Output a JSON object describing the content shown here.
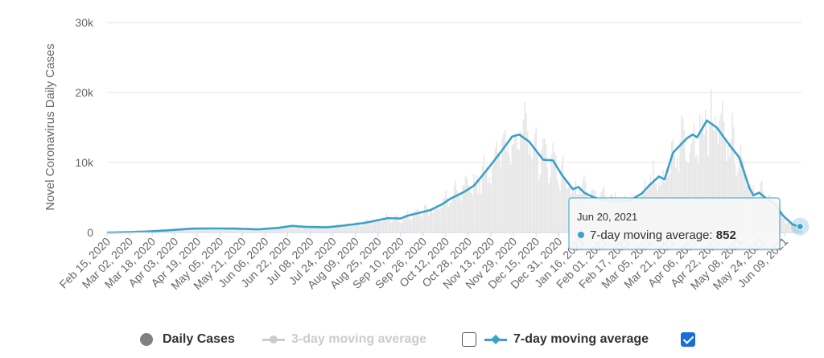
{
  "chart_data": {
    "type": "bar",
    "title": "",
    "ylabel": "Novel Coronavirus Daily Cases",
    "xlabel": "",
    "ylim": [
      0,
      30000
    ],
    "yticks": [
      {
        "value": 0,
        "label": "0"
      },
      {
        "value": 10000,
        "label": "10k"
      },
      {
        "value": 20000,
        "label": "20k"
      },
      {
        "value": 30000,
        "label": "30k"
      }
    ],
    "x_start": "2020-02-15",
    "x_end": "2021-06-21",
    "xtick_labels": [
      "Feb 15, 2020",
      "Mar 02, 2020",
      "Mar 18, 2020",
      "Apr 03, 2020",
      "Apr 19, 2020",
      "May 05, 2020",
      "May 21, 2020",
      "Jun 06, 2020",
      "Jun 22, 2020",
      "Jul 08, 2020",
      "Jul 24, 2020",
      "Aug 09, 2020",
      "Aug 25, 2020",
      "Sep 10, 2020",
      "Sep 26, 2020",
      "Oct 12, 2020",
      "Oct 28, 2020",
      "Nov 13, 2020",
      "Nov 29, 2020",
      "Dec 15, 2020",
      "Dec 31, 2020",
      "Jan 16, 2021",
      "Feb 01, 2021",
      "Feb 17, 2021",
      "Mar 05, 2021",
      "Mar 21, 2021",
      "Apr 06, 2021",
      "Apr 22, 2021",
      "May 08, 2021",
      "May 24, 2021",
      "Jun 09, 2021"
    ],
    "grid": true,
    "series": [
      {
        "name": "Daily Cases",
        "type": "bar",
        "color": "#e6e6e6",
        "visible": true,
        "description": "daily values approximated as the 7-day average with noise"
      },
      {
        "name": "3-day moving average",
        "type": "line",
        "color": "#cccccc",
        "visible": false
      },
      {
        "name": "7-day moving average",
        "type": "line",
        "color": "#3ba1c8",
        "visible": true,
        "points": [
          [
            "2020-02-15",
            0
          ],
          [
            "2020-03-01",
            50
          ],
          [
            "2020-03-15",
            150
          ],
          [
            "2020-04-01",
            350
          ],
          [
            "2020-04-15",
            550
          ],
          [
            "2020-05-01",
            580
          ],
          [
            "2020-05-15",
            560
          ],
          [
            "2020-06-01",
            450
          ],
          [
            "2020-06-15",
            650
          ],
          [
            "2020-06-25",
            950
          ],
          [
            "2020-07-05",
            800
          ],
          [
            "2020-07-20",
            750
          ],
          [
            "2020-08-01",
            1000
          ],
          [
            "2020-08-15",
            1350
          ],
          [
            "2020-09-01",
            2050
          ],
          [
            "2020-09-10",
            2000
          ],
          [
            "2020-09-15",
            2400
          ],
          [
            "2020-10-01",
            3200
          ],
          [
            "2020-10-10",
            4100
          ],
          [
            "2020-10-15",
            4800
          ],
          [
            "2020-10-25",
            5800
          ],
          [
            "2020-11-01",
            6700
          ],
          [
            "2020-11-10",
            8900
          ],
          [
            "2020-11-20",
            11500
          ],
          [
            "2020-11-28",
            13700
          ],
          [
            "2020-12-03",
            14000
          ],
          [
            "2020-12-10",
            13000
          ],
          [
            "2020-12-20",
            10400
          ],
          [
            "2020-12-27",
            10300
          ],
          [
            "2021-01-02",
            8300
          ],
          [
            "2021-01-10",
            6200
          ],
          [
            "2021-01-14",
            6500
          ],
          [
            "2021-01-18",
            5700
          ],
          [
            "2021-01-25",
            5000
          ],
          [
            "2021-02-01",
            4600
          ],
          [
            "2021-02-10",
            4400
          ],
          [
            "2021-02-20",
            4600
          ],
          [
            "2021-02-28",
            5600
          ],
          [
            "2021-03-05",
            6700
          ],
          [
            "2021-03-12",
            8000
          ],
          [
            "2021-03-16",
            7600
          ],
          [
            "2021-03-22",
            11400
          ],
          [
            "2021-04-01",
            13500
          ],
          [
            "2021-04-05",
            14000
          ],
          [
            "2021-04-08",
            13600
          ],
          [
            "2021-04-15",
            16000
          ],
          [
            "2021-04-22",
            15000
          ],
          [
            "2021-05-01",
            12500
          ],
          [
            "2021-05-08",
            10700
          ],
          [
            "2021-05-15",
            6400
          ],
          [
            "2021-05-18",
            5300
          ],
          [
            "2021-05-22",
            5700
          ],
          [
            "2021-05-28",
            4700
          ],
          [
            "2021-06-02",
            4100
          ],
          [
            "2021-06-08",
            2400
          ],
          [
            "2021-06-15",
            1100
          ],
          [
            "2021-06-20",
            852
          ]
        ]
      }
    ],
    "tooltip": {
      "date": "Jun 20, 2021",
      "series": "7-day moving average",
      "value": "852"
    }
  },
  "legend": {
    "items": [
      {
        "label": "Daily Cases",
        "enabled": true
      },
      {
        "label": "3-day moving average",
        "enabled": false,
        "checked": false
      },
      {
        "label": "7-day moving average",
        "enabled": true,
        "checked": true
      }
    ]
  },
  "colors": {
    "line": "#3ba1c8",
    "bar": "#e6e6e6",
    "checkbox": "#1a6ed8"
  }
}
